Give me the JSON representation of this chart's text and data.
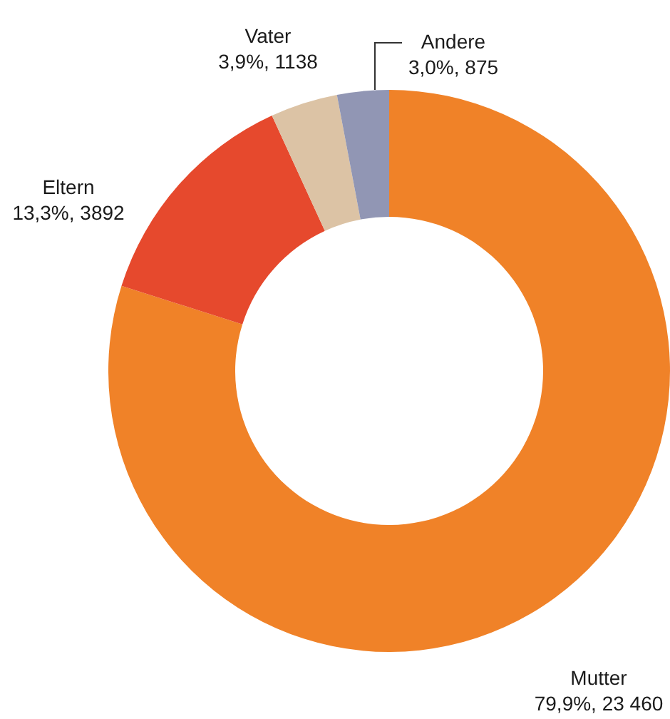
{
  "chart_data": {
    "type": "donut",
    "categories": [
      "Mutter",
      "Eltern",
      "Vater",
      "Andere"
    ],
    "values": [
      23460,
      3892,
      1138,
      875
    ],
    "colors": [
      "#f08228",
      "#e6492d",
      "#dcc3a5",
      "#9196b4"
    ],
    "value_labels": [
      "79,9%, 23 460",
      "13,3%, 3892",
      "3,9%, 1138",
      "3,0%, 875"
    ],
    "legend": false
  }
}
